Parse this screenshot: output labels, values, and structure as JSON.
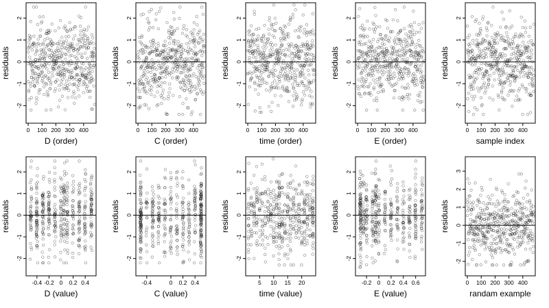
{
  "figure": {
    "ylabel": "residuals",
    "yticks": [
      -2,
      -1,
      0,
      1,
      2
    ],
    "ylim": [
      -2.8,
      2.7
    ],
    "reference_line_y": 0
  },
  "chart_data": [
    {
      "type": "scatter",
      "xlabel": "D (order)",
      "xlim": [
        -15,
        490
      ],
      "ylim": [
        -2.8,
        2.7
      ],
      "xticks": [
        0,
        100,
        200,
        300,
        400
      ],
      "ylabel": "residuals",
      "pattern": "index",
      "n": 480,
      "seed": 11,
      "sd": 0.95,
      "y_range": [
        -2.2,
        2.5
      ]
    },
    {
      "type": "scatter",
      "xlabel": "C (order)",
      "xlim": [
        -15,
        490
      ],
      "ylim": [
        -2.8,
        2.7
      ],
      "xticks": [
        0,
        100,
        200,
        300,
        400
      ],
      "ylabel": "residuals",
      "pattern": "index",
      "n": 480,
      "seed": 23,
      "sd": 0.95,
      "y_range": [
        -2.4,
        2.5
      ]
    },
    {
      "type": "scatter",
      "xlabel": "time (order)",
      "xlim": [
        -15,
        490
      ],
      "ylim": [
        -2.8,
        2.7
      ],
      "xticks": [
        0,
        100,
        200,
        300,
        400
      ],
      "ylabel": "residuals",
      "pattern": "index",
      "n": 480,
      "seed": 37,
      "sd": 0.95,
      "y_range": [
        -2.3,
        2.6
      ]
    },
    {
      "type": "scatter",
      "xlabel": "E (order)",
      "xlim": [
        -15,
        490
      ],
      "ylim": [
        -2.8,
        2.7
      ],
      "xticks": [
        0,
        100,
        200,
        300,
        400
      ],
      "ylabel": "residuals",
      "pattern": "index",
      "n": 480,
      "seed": 41,
      "sd": 0.95,
      "y_range": [
        -2.2,
        2.5
      ]
    },
    {
      "type": "scatter",
      "xlabel": "sample index",
      "xlim": [
        -15,
        490
      ],
      "ylim": [
        -2.8,
        2.7
      ],
      "xticks": [
        0,
        100,
        200,
        300,
        400
      ],
      "ylabel": "residuals",
      "pattern": "index",
      "n": 480,
      "seed": 53,
      "sd": 0.95,
      "y_range": [
        -2.4,
        2.5
      ]
    },
    {
      "type": "scatter",
      "xlabel": "D (value)",
      "xlim": [
        -0.58,
        0.58
      ],
      "ylim": [
        -2.8,
        2.7
      ],
      "xticks": [
        -0.4,
        -0.2,
        0.0,
        0.2,
        0.4
      ],
      "ylabel": "residuals",
      "pattern": "clusters",
      "n": 480,
      "seed": 67,
      "sd": 0.95,
      "y_range": [
        -2.2,
        2.5
      ],
      "x_clusters": [
        -0.5,
        -0.4,
        -0.3,
        -0.2,
        -0.1,
        0.0,
        0.05,
        0.1,
        0.2,
        0.3,
        0.4,
        0.5
      ],
      "jitter": 0.012
    },
    {
      "type": "scatter",
      "xlabel": "C (value)",
      "xlim": [
        -0.58,
        0.58
      ],
      "ylim": [
        -2.8,
        2.7
      ],
      "xticks": [
        -0.4,
        0.0,
        0.2,
        0.4
      ],
      "ylabel": "residuals",
      "pattern": "clusters",
      "n": 480,
      "seed": 79,
      "sd": 0.95,
      "y_range": [
        -2.2,
        2.5
      ],
      "x_clusters": [
        -0.5,
        -0.5,
        -0.5,
        -0.4,
        -0.3,
        -0.2,
        -0.1,
        0.0,
        0.1,
        0.2,
        0.3,
        0.4,
        0.5,
        0.5,
        0.5
      ],
      "jitter": 0.012
    },
    {
      "type": "scatter",
      "xlabel": "time (value)",
      "xlim": [
        0,
        25
      ],
      "ylim": [
        -2.8,
        2.7
      ],
      "xticks": [
        5,
        10,
        15,
        20
      ],
      "ylabel": "residuals",
      "pattern": "clusters",
      "n": 480,
      "seed": 83,
      "sd": 0.95,
      "y_range": [
        -2.3,
        2.6
      ],
      "x_clusters": [
        1,
        2,
        3,
        4,
        5,
        6,
        7,
        8,
        9,
        10,
        11,
        12,
        12,
        13,
        14,
        15,
        16,
        17,
        18,
        19,
        20,
        21,
        22,
        23,
        24,
        24
      ],
      "jitter": 0.15
    },
    {
      "type": "scatter",
      "xlabel": "E (value)",
      "xlim": [
        -0.38,
        0.76
      ],
      "ylim": [
        -2.8,
        2.7
      ],
      "xticks": [
        -0.2,
        0.0,
        0.2,
        0.4,
        0.6
      ],
      "ylabel": "residuals",
      "pattern": "clusters",
      "n": 480,
      "seed": 97,
      "sd": 0.95,
      "y_range": [
        -2.4,
        2.5
      ],
      "x_clusters": [
        -0.3,
        -0.3,
        -0.3,
        -0.25,
        -0.2,
        -0.1,
        -0.05,
        -0.05,
        0.0,
        0.1,
        0.2,
        0.3,
        0.4,
        0.5,
        0.6,
        0.7
      ],
      "jitter": 0.012
    },
    {
      "type": "scatter",
      "xlabel": "randam example",
      "xlim": [
        -15,
        490
      ],
      "ylim": [
        -2.8,
        3.8
      ],
      "xticks": [
        0,
        100,
        200,
        300,
        400
      ],
      "yticks": [
        -2,
        -1,
        0,
        1,
        2,
        3
      ],
      "ylabel": "residuals",
      "pattern": "index",
      "n": 480,
      "seed": 101,
      "sd": 1.0,
      "y_range": [
        -2.2,
        3.7
      ]
    }
  ]
}
